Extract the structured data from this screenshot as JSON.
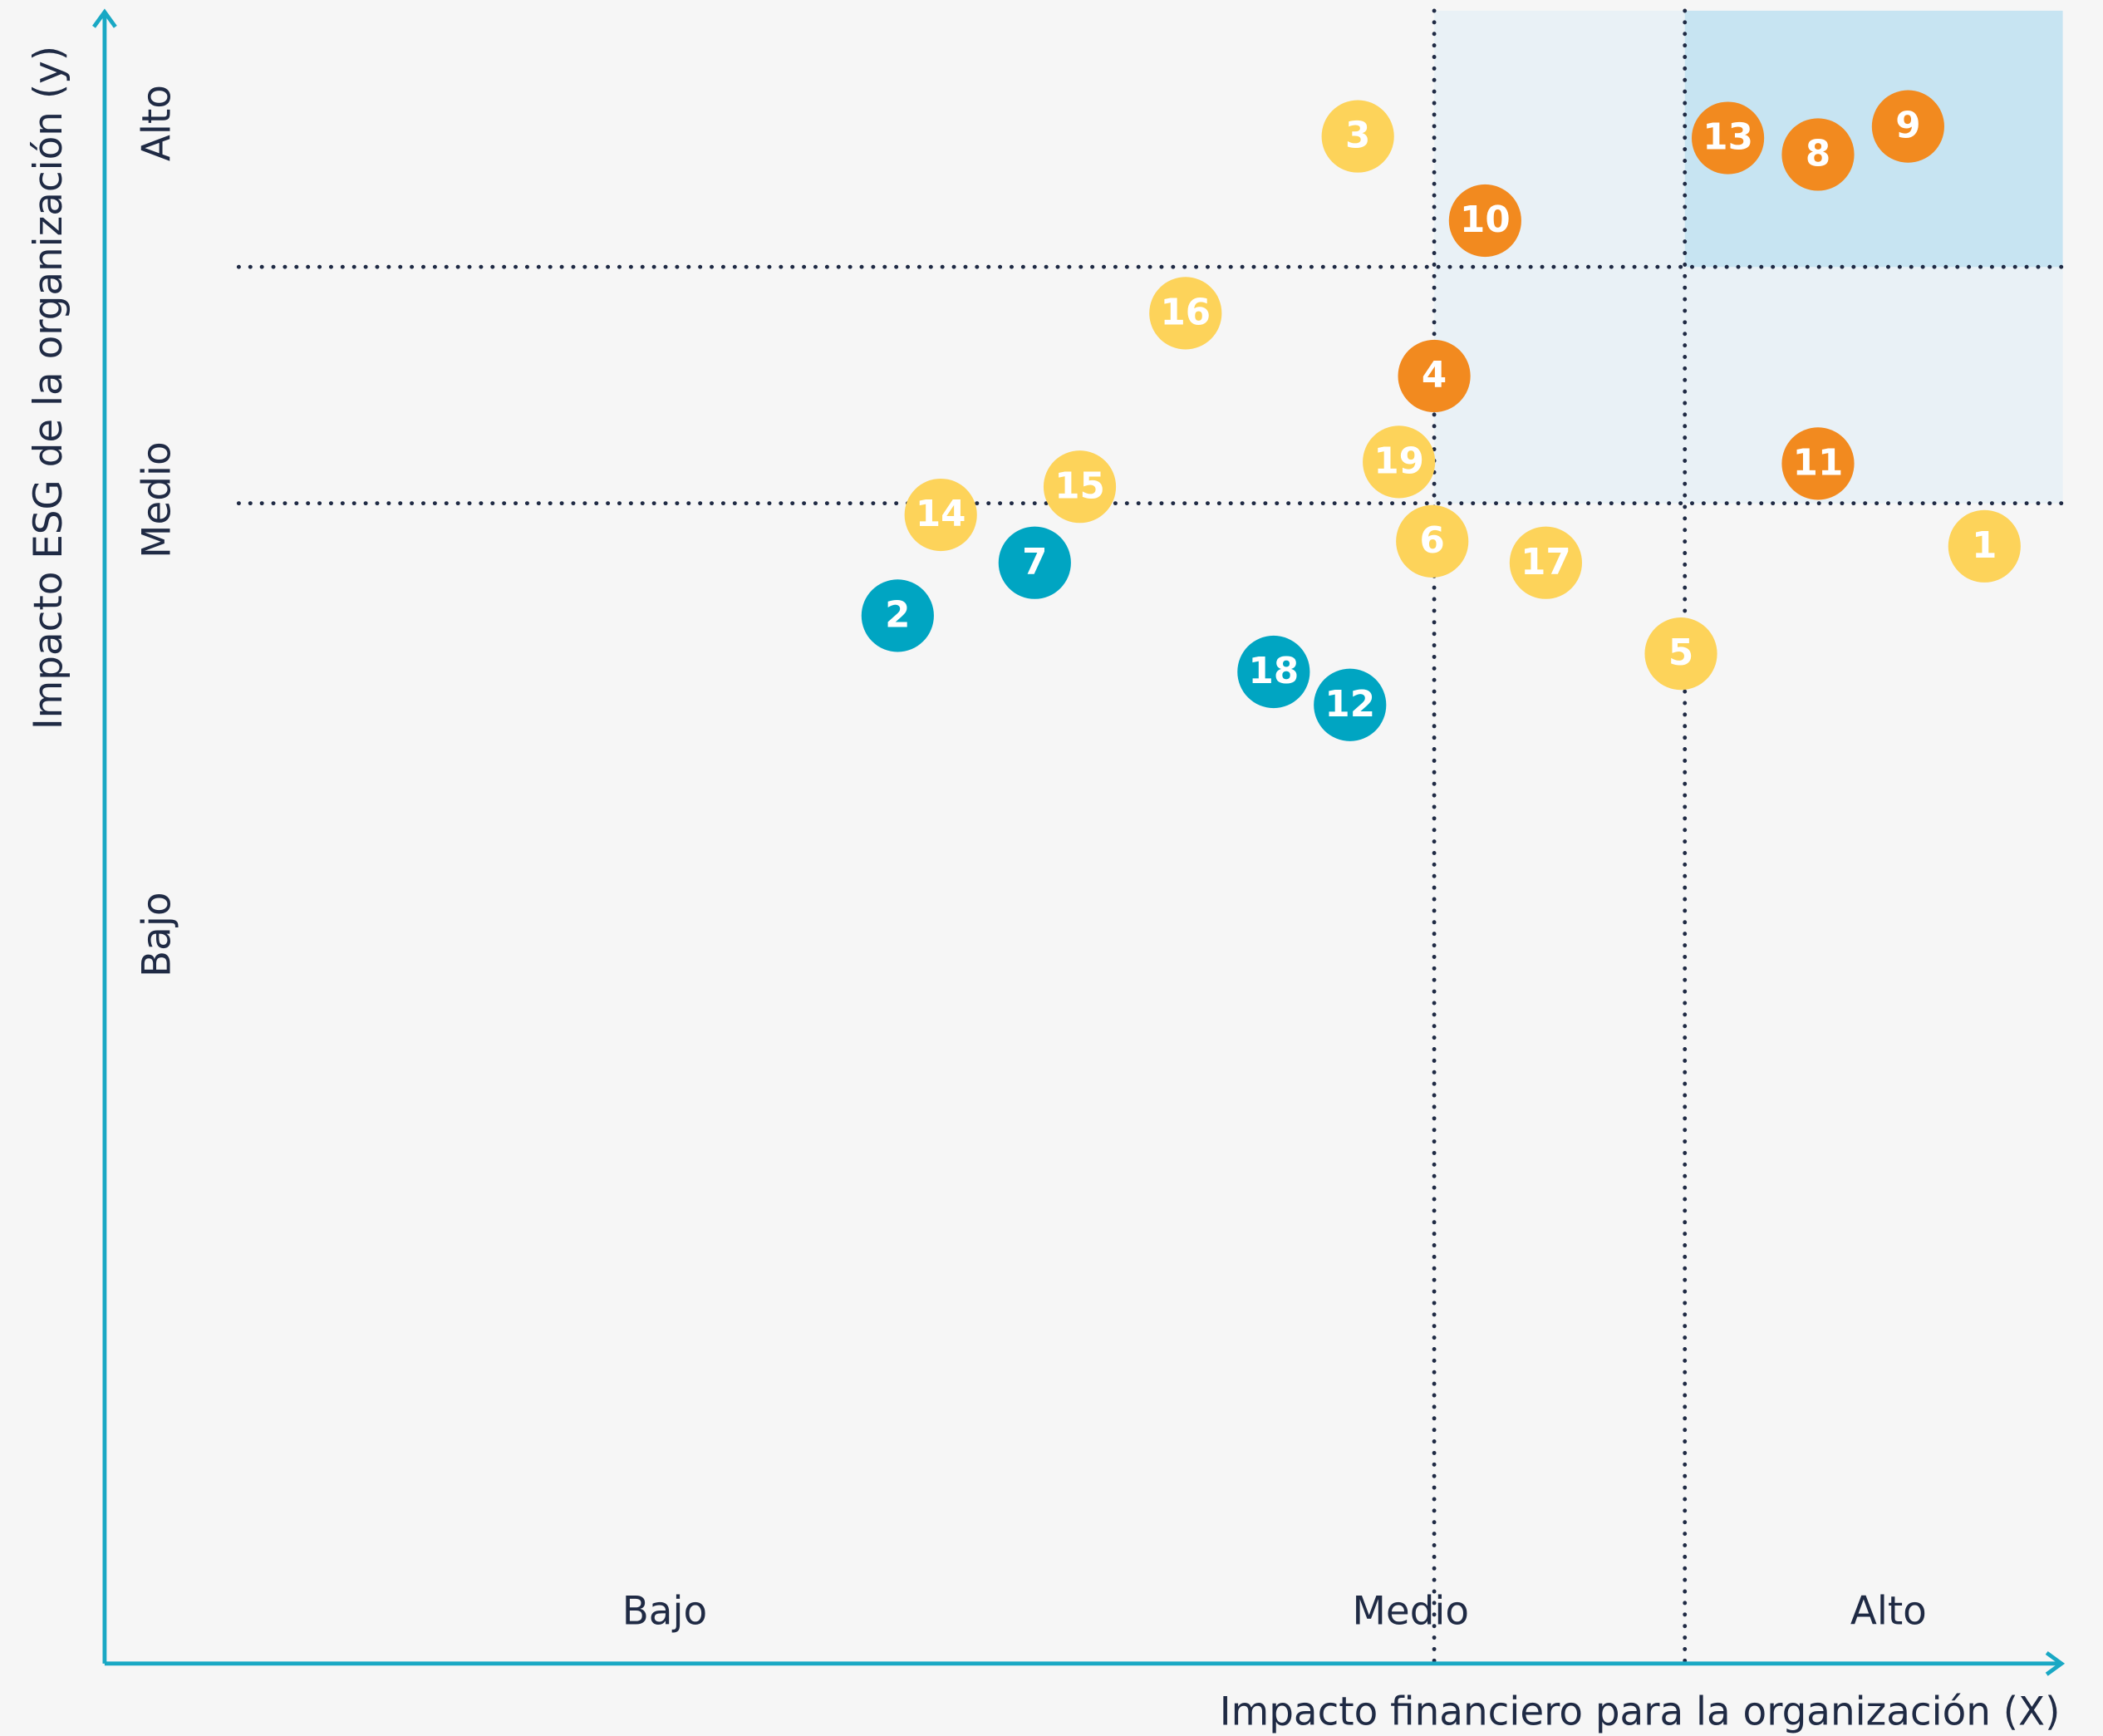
{
  "chart_data": {
    "type": "scatter",
    "xlabel": "Impacto financiero para la organización (X)",
    "ylabel": "Impacto ESG de la organización (y)",
    "xlim": [
      0,
      100
    ],
    "ylim": [
      0,
      100
    ],
    "xticks": [
      {
        "value": 28.6,
        "label": "Bajo"
      },
      {
        "value": 66.7,
        "label": "Medio"
      },
      {
        "value": 91.1,
        "label": "Alto"
      }
    ],
    "yticks": [
      {
        "value": 44.1,
        "label": "Bajo"
      },
      {
        "value": 70.4,
        "label": "Medio"
      },
      {
        "value": 93.2,
        "label": "Alto"
      }
    ],
    "x_thresholds": [
      67.9,
      80.7
    ],
    "y_thresholds": [
      70.2,
      84.5
    ],
    "threshold_color": "#1f2a44",
    "shade_colors": [
      "#e9f1f6",
      "#c7e4f2"
    ],
    "series": [
      {
        "color": "#fdd35a",
        "labels": [
          "1",
          "3",
          "5",
          "6",
          "14",
          "15",
          "16",
          "17",
          "19"
        ],
        "x": [
          96.0,
          64.0,
          80.5,
          67.8,
          42.7,
          49.8,
          55.2,
          73.6,
          66.1
        ],
        "values": [
          67.6,
          92.4,
          61.1,
          67.9,
          69.5,
          71.2,
          81.7,
          66.6,
          72.7
        ]
      },
      {
        "color": "#f28a1f",
        "labels": [
          "4",
          "8",
          "9",
          "10",
          "11",
          "13"
        ],
        "x": [
          67.9,
          87.5,
          92.1,
          70.5,
          87.5,
          82.9
        ],
        "values": [
          77.9,
          91.3,
          93.0,
          87.3,
          72.6,
          92.3
        ]
      },
      {
        "color": "#00a5c2",
        "labels": [
          "2",
          "7",
          "12",
          "18"
        ],
        "x": [
          40.5,
          47.5,
          63.6,
          59.7
        ],
        "values": [
          63.4,
          66.6,
          58.0,
          60.0
        ]
      }
    ]
  }
}
